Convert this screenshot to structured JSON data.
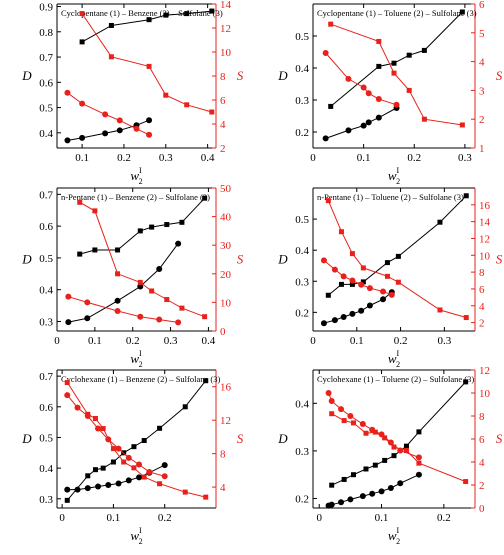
{
  "colors": {
    "black_series": "#000000",
    "red_series": "#e8211b",
    "red_axis": "#e8211b"
  },
  "chart_data": [
    {
      "type": "line",
      "title": "Cyclopentane (1) – Benzene (2) – Sulfolane (3)",
      "xlabel": "w",
      "xlabel_sup": "I",
      "xlabel_sub": "2",
      "ylabel_left": "D",
      "ylabel_right": "S",
      "xlim": [
        0.04,
        0.42
      ],
      "ylim_left": [
        0.34,
        0.91
      ],
      "ylim_right": [
        2,
        14
      ],
      "xticks": [
        0.1,
        0.2,
        0.3,
        0.4
      ],
      "yticks_left": [
        0.4,
        0.5,
        0.6,
        0.7,
        0.8,
        0.9
      ],
      "yticks_right": [
        2,
        4,
        6,
        8,
        10,
        12,
        14
      ],
      "series": [
        {
          "axis": "left",
          "color": "#000000",
          "marker": "square",
          "x": [
            0.1,
            0.17,
            0.26,
            0.3,
            0.35,
            0.41
          ],
          "y": [
            0.76,
            0.825,
            0.848,
            0.866,
            0.872,
            0.882
          ]
        },
        {
          "axis": "left",
          "color": "#000000",
          "marker": "circle",
          "x": [
            0.065,
            0.1,
            0.155,
            0.19,
            0.23,
            0.26
          ],
          "y": [
            0.37,
            0.38,
            0.398,
            0.41,
            0.43,
            0.45
          ]
        },
        {
          "axis": "right",
          "color": "#e8211b",
          "marker": "square",
          "x": [
            0.1,
            0.17,
            0.26,
            0.3,
            0.35,
            0.41
          ],
          "y": [
            13.2,
            9.6,
            8.8,
            6.4,
            5.6,
            5.0
          ]
        },
        {
          "axis": "right",
          "color": "#e8211b",
          "marker": "circle",
          "x": [
            0.065,
            0.1,
            0.155,
            0.19,
            0.23,
            0.26
          ],
          "y": [
            6.6,
            5.7,
            4.8,
            4.3,
            3.6,
            3.1
          ]
        }
      ]
    },
    {
      "type": "line",
      "title": "Cyclopentane (1) – Toluene (2) – Sulfolane (3)",
      "xlabel": "w",
      "xlabel_sup": "I",
      "xlabel_sub": "2",
      "ylabel_left": "D",
      "ylabel_right": "S",
      "xlim": [
        0.0,
        0.32
      ],
      "ylim_left": [
        0.15,
        0.6
      ],
      "ylim_right": [
        1,
        6
      ],
      "xticks": [
        0.0,
        0.1,
        0.2,
        0.3
      ],
      "yticks_left": [
        0.2,
        0.3,
        0.4,
        0.5
      ],
      "yticks_right": [
        1,
        2,
        3,
        4,
        5,
        6
      ],
      "series": [
        {
          "axis": "left",
          "color": "#000000",
          "marker": "square",
          "x": [
            0.035,
            0.13,
            0.16,
            0.19,
            0.22,
            0.295
          ],
          "y": [
            0.28,
            0.405,
            0.415,
            0.44,
            0.455,
            0.575
          ]
        },
        {
          "axis": "left",
          "color": "#000000",
          "marker": "circle",
          "x": [
            0.025,
            0.07,
            0.1,
            0.11,
            0.13,
            0.165
          ],
          "y": [
            0.18,
            0.205,
            0.22,
            0.23,
            0.245,
            0.275
          ]
        },
        {
          "axis": "right",
          "color": "#e8211b",
          "marker": "square",
          "x": [
            0.035,
            0.13,
            0.16,
            0.19,
            0.22,
            0.295
          ],
          "y": [
            5.3,
            4.7,
            3.6,
            3.0,
            2.0,
            1.8
          ]
        },
        {
          "axis": "right",
          "color": "#e8211b",
          "marker": "circle",
          "x": [
            0.025,
            0.07,
            0.1,
            0.11,
            0.13,
            0.165
          ],
          "y": [
            4.3,
            3.4,
            3.1,
            2.9,
            2.7,
            2.5
          ]
        }
      ]
    },
    {
      "type": "line",
      "title": "n-Pentane (1) – Benzene (2) – Sulfolane (3)",
      "xlabel": "w",
      "xlabel_sup": "I",
      "xlabel_sub": "2",
      "ylabel_left": "D",
      "ylabel_right": "S",
      "xlim": [
        0.0,
        0.42
      ],
      "ylim_left": [
        0.27,
        0.72
      ],
      "ylim_right": [
        0,
        50
      ],
      "xticks": [
        0.0,
        0.1,
        0.2,
        0.3,
        0.4
      ],
      "yticks_left": [
        0.3,
        0.4,
        0.5,
        0.6,
        0.7
      ],
      "yticks_right": [
        0,
        10,
        20,
        30,
        40,
        50
      ],
      "series": [
        {
          "axis": "left",
          "color": "#000000",
          "marker": "square",
          "x": [
            0.06,
            0.1,
            0.16,
            0.22,
            0.25,
            0.29,
            0.33,
            0.39
          ],
          "y": [
            0.512,
            0.525,
            0.525,
            0.585,
            0.597,
            0.605,
            0.612,
            0.688
          ]
        },
        {
          "axis": "left",
          "color": "#000000",
          "marker": "circle",
          "x": [
            0.03,
            0.08,
            0.16,
            0.22,
            0.27,
            0.32
          ],
          "y": [
            0.298,
            0.31,
            0.365,
            0.41,
            0.465,
            0.545
          ]
        },
        {
          "axis": "right",
          "color": "#e8211b",
          "marker": "square",
          "x": [
            0.06,
            0.1,
            0.16,
            0.22,
            0.25,
            0.29,
            0.33,
            0.39
          ],
          "y": [
            45,
            42,
            20,
            17,
            14,
            11,
            8,
            5
          ]
        },
        {
          "axis": "right",
          "color": "#e8211b",
          "marker": "circle",
          "x": [
            0.03,
            0.08,
            0.16,
            0.22,
            0.27,
            0.32
          ],
          "y": [
            12,
            10,
            7,
            5,
            4,
            3
          ]
        }
      ]
    },
    {
      "type": "line",
      "title": "n-Pentane (1) – Toluene (2) – Sulfolane (3)",
      "xlabel": "w",
      "xlabel_sup": "I",
      "xlabel_sub": "2",
      "ylabel_left": "D",
      "ylabel_right": "S",
      "xlim": [
        0.0,
        0.37
      ],
      "ylim_left": [
        0.14,
        0.6
      ],
      "ylim_right": [
        1,
        18
      ],
      "xticks": [
        0.0,
        0.1,
        0.2,
        0.3
      ],
      "yticks_left": [
        0.2,
        0.3,
        0.4,
        0.5
      ],
      "yticks_right": [
        2,
        4,
        6,
        8,
        10,
        12,
        14,
        16
      ],
      "series": [
        {
          "axis": "left",
          "color": "#000000",
          "marker": "square",
          "x": [
            0.035,
            0.065,
            0.09,
            0.115,
            0.17,
            0.195,
            0.29,
            0.35
          ],
          "y": [
            0.255,
            0.29,
            0.29,
            0.298,
            0.36,
            0.38,
            0.49,
            0.575
          ]
        },
        {
          "axis": "left",
          "color": "#000000",
          "marker": "circle",
          "x": [
            0.025,
            0.05,
            0.07,
            0.09,
            0.11,
            0.13,
            0.16,
            0.18
          ],
          "y": [
            0.165,
            0.175,
            0.185,
            0.195,
            0.205,
            0.222,
            0.242,
            0.265
          ]
        },
        {
          "axis": "right",
          "color": "#e8211b",
          "marker": "square",
          "x": [
            0.035,
            0.065,
            0.09,
            0.115,
            0.17,
            0.195,
            0.29,
            0.35
          ],
          "y": [
            16.5,
            12.8,
            10.2,
            8.5,
            7.5,
            6.8,
            3.5,
            2.6
          ]
        },
        {
          "axis": "right",
          "color": "#e8211b",
          "marker": "circle",
          "x": [
            0.025,
            0.05,
            0.07,
            0.09,
            0.11,
            0.13,
            0.16,
            0.18
          ],
          "y": [
            9.4,
            8.3,
            7.5,
            7.0,
            6.5,
            6.1,
            5.7,
            5.3
          ]
        }
      ]
    },
    {
      "type": "line",
      "title": "Cyclohexane (1) – Benzene (2) – Sulfolane (3)",
      "xlabel": "w",
      "xlabel_sup": "I",
      "xlabel_sub": "2",
      "ylabel_left": "D",
      "ylabel_right": "S",
      "xlim": [
        -0.01,
        0.3
      ],
      "ylim_left": [
        0.27,
        0.72
      ],
      "ylim_right": [
        1.5,
        18
      ],
      "xticks": [
        0.0,
        0.1,
        0.2
      ],
      "yticks_left": [
        0.3,
        0.4,
        0.5,
        0.6,
        0.7
      ],
      "yticks_right": [
        4,
        8,
        12,
        16
      ],
      "series": [
        {
          "axis": "left",
          "color": "#000000",
          "marker": "square",
          "x": [
            0.01,
            0.05,
            0.065,
            0.08,
            0.1,
            0.12,
            0.14,
            0.16,
            0.19,
            0.24,
            0.28
          ],
          "y": [
            0.295,
            0.375,
            0.395,
            0.4,
            0.42,
            0.45,
            0.47,
            0.49,
            0.53,
            0.6,
            0.685
          ]
        },
        {
          "axis": "left",
          "color": "#000000",
          "marker": "circle",
          "x": [
            0.01,
            0.03,
            0.05,
            0.07,
            0.09,
            0.11,
            0.13,
            0.15,
            0.17,
            0.2
          ],
          "y": [
            0.33,
            0.33,
            0.335,
            0.34,
            0.345,
            0.35,
            0.36,
            0.37,
            0.385,
            0.41
          ]
        },
        {
          "axis": "right",
          "color": "#e8211b",
          "marker": "square",
          "x": [
            0.01,
            0.05,
            0.065,
            0.08,
            0.1,
            0.12,
            0.14,
            0.16,
            0.19,
            0.24,
            0.28
          ],
          "y": [
            16.5,
            12.7,
            12.2,
            11.0,
            8.6,
            7.0,
            6.3,
            5.2,
            4.4,
            3.4,
            2.8
          ]
        },
        {
          "axis": "right",
          "color": "#e8211b",
          "marker": "circle",
          "x": [
            0.01,
            0.03,
            0.05,
            0.07,
            0.09,
            0.11,
            0.13,
            0.15,
            0.17,
            0.2
          ],
          "y": [
            15.0,
            13.5,
            12.5,
            11.0,
            9.7,
            8.6,
            7.5,
            6.7,
            5.8,
            5.3
          ]
        }
      ]
    },
    {
      "type": "line",
      "title": "Cyclohexane (1) – Toluene (2) – Sulfolane (3)",
      "xlabel": "w",
      "xlabel_sup": "I",
      "xlabel_sub": "2",
      "ylabel_left": "D",
      "ylabel_right": "S",
      "xlim": [
        -0.01,
        0.25
      ],
      "ylim_left": [
        0.18,
        0.47
      ],
      "ylim_right": [
        0,
        12
      ],
      "xticks": [
        0.0,
        0.1,
        0.2
      ],
      "yticks_left": [
        0.2,
        0.3,
        0.4
      ],
      "yticks_right": [
        0,
        2,
        4,
        6,
        8,
        10,
        12
      ],
      "series": [
        {
          "axis": "left",
          "color": "#000000",
          "marker": "square",
          "x": [
            0.02,
            0.04,
            0.055,
            0.075,
            0.09,
            0.105,
            0.12,
            0.14,
            0.16,
            0.235
          ],
          "y": [
            0.228,
            0.24,
            0.25,
            0.262,
            0.27,
            0.28,
            0.29,
            0.31,
            0.34,
            0.445
          ]
        },
        {
          "axis": "left",
          "color": "#000000",
          "marker": "circle",
          "x": [
            0.015,
            0.02,
            0.035,
            0.05,
            0.07,
            0.085,
            0.1,
            0.115,
            0.13,
            0.16
          ],
          "y": [
            0.185,
            0.187,
            0.192,
            0.198,
            0.205,
            0.21,
            0.215,
            0.222,
            0.232,
            0.25
          ]
        },
        {
          "axis": "right",
          "color": "#e8211b",
          "marker": "square",
          "x": [
            0.02,
            0.04,
            0.055,
            0.075,
            0.09,
            0.105,
            0.12,
            0.14,
            0.16,
            0.235
          ],
          "y": [
            8.2,
            7.6,
            7.4,
            6.5,
            6.6,
            6.1,
            5.3,
            5.0,
            3.9,
            2.3
          ]
        },
        {
          "axis": "right",
          "color": "#e8211b",
          "marker": "circle",
          "x": [
            0.015,
            0.02,
            0.035,
            0.05,
            0.07,
            0.085,
            0.1,
            0.115,
            0.13,
            0.16
          ],
          "y": [
            10.0,
            9.3,
            8.6,
            8.0,
            7.3,
            6.8,
            6.4,
            5.7,
            5.0,
            4.4
          ]
        }
      ]
    }
  ]
}
